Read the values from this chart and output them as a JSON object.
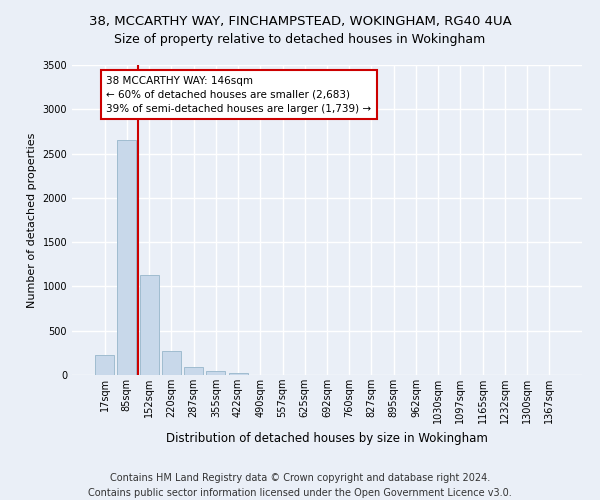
{
  "title1": "38, MCCARTHY WAY, FINCHAMPSTEAD, WOKINGHAM, RG40 4UA",
  "title2": "Size of property relative to detached houses in Wokingham",
  "xlabel": "Distribution of detached houses by size in Wokingham",
  "ylabel": "Number of detached properties",
  "bar_color": "#c8d8ea",
  "bar_edge_color": "#a0bcd0",
  "marker_color": "#cc0000",
  "categories": [
    "17sqm",
    "85sqm",
    "152sqm",
    "220sqm",
    "287sqm",
    "355sqm",
    "422sqm",
    "490sqm",
    "557sqm",
    "625sqm",
    "692sqm",
    "760sqm",
    "827sqm",
    "895sqm",
    "962sqm",
    "1030sqm",
    "1097sqm",
    "1165sqm",
    "1232sqm",
    "1300sqm",
    "1367sqm"
  ],
  "values": [
    230,
    2650,
    1130,
    270,
    95,
    45,
    25,
    0,
    0,
    0,
    0,
    0,
    0,
    0,
    0,
    0,
    0,
    0,
    0,
    0,
    0
  ],
  "annotation_text": "38 MCCARTHY WAY: 146sqm\n← 60% of detached houses are smaller (2,683)\n39% of semi-detached houses are larger (1,739) →",
  "ylim": [
    0,
    3500
  ],
  "yticks": [
    0,
    500,
    1000,
    1500,
    2000,
    2500,
    3000,
    3500
  ],
  "footer1": "Contains HM Land Registry data © Crown copyright and database right 2024.",
  "footer2": "Contains public sector information licensed under the Open Government Licence v3.0.",
  "background_color": "#eaeff7",
  "plot_bg_color": "#eaeff7",
  "grid_color": "#ffffff",
  "title1_fontsize": 9.5,
  "title2_fontsize": 9,
  "xlabel_fontsize": 8.5,
  "ylabel_fontsize": 8,
  "footer_fontsize": 7,
  "tick_fontsize": 7
}
